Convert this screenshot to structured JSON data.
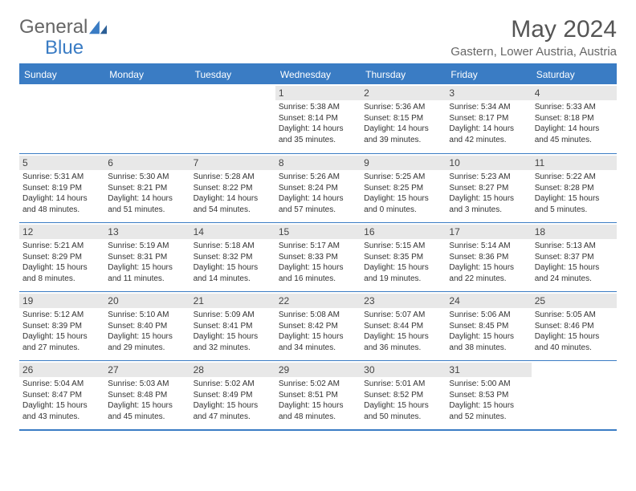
{
  "logo": {
    "part1": "General",
    "part2": "Blue"
  },
  "title": "May 2024",
  "location": "Gastern, Lower Austria, Austria",
  "colors": {
    "accent": "#3a7cc4",
    "header_bg": "#3a7cc4",
    "header_text": "#ffffff",
    "daynum_bg": "#e8e8e8",
    "text": "#333333",
    "background": "#ffffff"
  },
  "calendar": {
    "columns": [
      "Sunday",
      "Monday",
      "Tuesday",
      "Wednesday",
      "Thursday",
      "Friday",
      "Saturday"
    ],
    "first_weekday_index": 3,
    "days_in_month": 31,
    "cell_fontsize": 10,
    "header_fontsize": 12,
    "daynum_fontsize": 12,
    "days": [
      {
        "n": 1,
        "sunrise": "5:38 AM",
        "sunset": "8:14 PM",
        "daylight": "14 hours and 35 minutes."
      },
      {
        "n": 2,
        "sunrise": "5:36 AM",
        "sunset": "8:15 PM",
        "daylight": "14 hours and 39 minutes."
      },
      {
        "n": 3,
        "sunrise": "5:34 AM",
        "sunset": "8:17 PM",
        "daylight": "14 hours and 42 minutes."
      },
      {
        "n": 4,
        "sunrise": "5:33 AM",
        "sunset": "8:18 PM",
        "daylight": "14 hours and 45 minutes."
      },
      {
        "n": 5,
        "sunrise": "5:31 AM",
        "sunset": "8:19 PM",
        "daylight": "14 hours and 48 minutes."
      },
      {
        "n": 6,
        "sunrise": "5:30 AM",
        "sunset": "8:21 PM",
        "daylight": "14 hours and 51 minutes."
      },
      {
        "n": 7,
        "sunrise": "5:28 AM",
        "sunset": "8:22 PM",
        "daylight": "14 hours and 54 minutes."
      },
      {
        "n": 8,
        "sunrise": "5:26 AM",
        "sunset": "8:24 PM",
        "daylight": "14 hours and 57 minutes."
      },
      {
        "n": 9,
        "sunrise": "5:25 AM",
        "sunset": "8:25 PM",
        "daylight": "15 hours and 0 minutes."
      },
      {
        "n": 10,
        "sunrise": "5:23 AM",
        "sunset": "8:27 PM",
        "daylight": "15 hours and 3 minutes."
      },
      {
        "n": 11,
        "sunrise": "5:22 AM",
        "sunset": "8:28 PM",
        "daylight": "15 hours and 5 minutes."
      },
      {
        "n": 12,
        "sunrise": "5:21 AM",
        "sunset": "8:29 PM",
        "daylight": "15 hours and 8 minutes."
      },
      {
        "n": 13,
        "sunrise": "5:19 AM",
        "sunset": "8:31 PM",
        "daylight": "15 hours and 11 minutes."
      },
      {
        "n": 14,
        "sunrise": "5:18 AM",
        "sunset": "8:32 PM",
        "daylight": "15 hours and 14 minutes."
      },
      {
        "n": 15,
        "sunrise": "5:17 AM",
        "sunset": "8:33 PM",
        "daylight": "15 hours and 16 minutes."
      },
      {
        "n": 16,
        "sunrise": "5:15 AM",
        "sunset": "8:35 PM",
        "daylight": "15 hours and 19 minutes."
      },
      {
        "n": 17,
        "sunrise": "5:14 AM",
        "sunset": "8:36 PM",
        "daylight": "15 hours and 22 minutes."
      },
      {
        "n": 18,
        "sunrise": "5:13 AM",
        "sunset": "8:37 PM",
        "daylight": "15 hours and 24 minutes."
      },
      {
        "n": 19,
        "sunrise": "5:12 AM",
        "sunset": "8:39 PM",
        "daylight": "15 hours and 27 minutes."
      },
      {
        "n": 20,
        "sunrise": "5:10 AM",
        "sunset": "8:40 PM",
        "daylight": "15 hours and 29 minutes."
      },
      {
        "n": 21,
        "sunrise": "5:09 AM",
        "sunset": "8:41 PM",
        "daylight": "15 hours and 32 minutes."
      },
      {
        "n": 22,
        "sunrise": "5:08 AM",
        "sunset": "8:42 PM",
        "daylight": "15 hours and 34 minutes."
      },
      {
        "n": 23,
        "sunrise": "5:07 AM",
        "sunset": "8:44 PM",
        "daylight": "15 hours and 36 minutes."
      },
      {
        "n": 24,
        "sunrise": "5:06 AM",
        "sunset": "8:45 PM",
        "daylight": "15 hours and 38 minutes."
      },
      {
        "n": 25,
        "sunrise": "5:05 AM",
        "sunset": "8:46 PM",
        "daylight": "15 hours and 40 minutes."
      },
      {
        "n": 26,
        "sunrise": "5:04 AM",
        "sunset": "8:47 PM",
        "daylight": "15 hours and 43 minutes."
      },
      {
        "n": 27,
        "sunrise": "5:03 AM",
        "sunset": "8:48 PM",
        "daylight": "15 hours and 45 minutes."
      },
      {
        "n": 28,
        "sunrise": "5:02 AM",
        "sunset": "8:49 PM",
        "daylight": "15 hours and 47 minutes."
      },
      {
        "n": 29,
        "sunrise": "5:02 AM",
        "sunset": "8:51 PM",
        "daylight": "15 hours and 48 minutes."
      },
      {
        "n": 30,
        "sunrise": "5:01 AM",
        "sunset": "8:52 PM",
        "daylight": "15 hours and 50 minutes."
      },
      {
        "n": 31,
        "sunrise": "5:00 AM",
        "sunset": "8:53 PM",
        "daylight": "15 hours and 52 minutes."
      }
    ],
    "labels": {
      "sunrise": "Sunrise:",
      "sunset": "Sunset:",
      "daylight": "Daylight:"
    }
  }
}
